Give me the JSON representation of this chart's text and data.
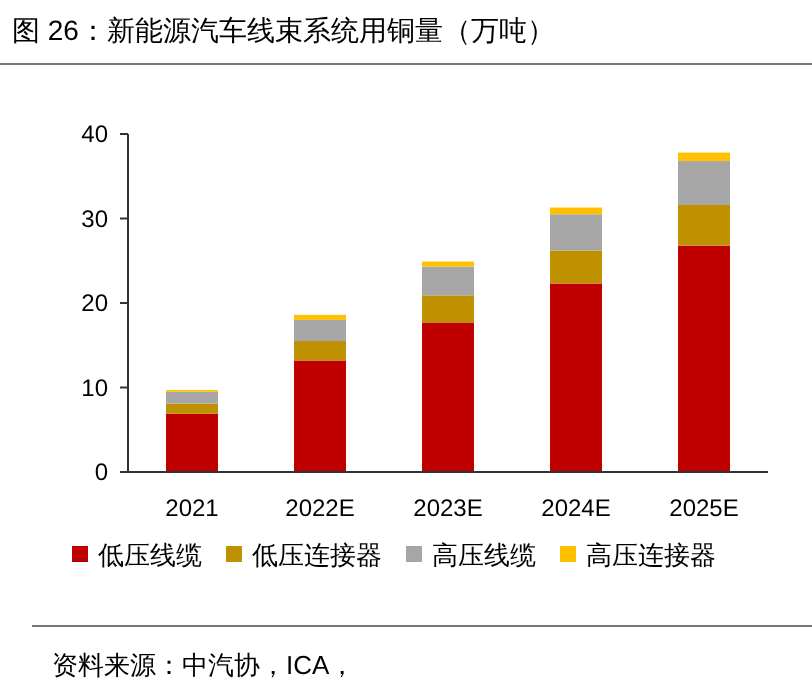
{
  "chart_data": {
    "type": "bar",
    "title": "图 26：新能源汽车线束系统用铜量（万吨）",
    "categories": [
      "2021",
      "2022E",
      "2023E",
      "2024E",
      "2025E"
    ],
    "stacked": true,
    "series": [
      {
        "name": "低压线缆",
        "color": "#c00000",
        "values": [
          6.9,
          13.2,
          17.7,
          22.3,
          26.8
        ]
      },
      {
        "name": "低压连接器",
        "color": "#bf9000",
        "values": [
          1.2,
          2.3,
          3.2,
          3.9,
          4.8
        ]
      },
      {
        "name": "高压线缆",
        "color": "#a6a6a6",
        "values": [
          1.4,
          2.5,
          3.4,
          4.3,
          5.2
        ]
      },
      {
        "name": "高压连接器",
        "color": "#ffc000",
        "values": [
          0.2,
          0.6,
          0.6,
          0.8,
          1.0
        ]
      }
    ],
    "ylim": [
      0,
      40
    ],
    "yticks": [
      0,
      10,
      20,
      30,
      40
    ],
    "grid": false,
    "legend": "bottom",
    "annotations": [
      "资料来源：中汽协，ICA，"
    ]
  }
}
